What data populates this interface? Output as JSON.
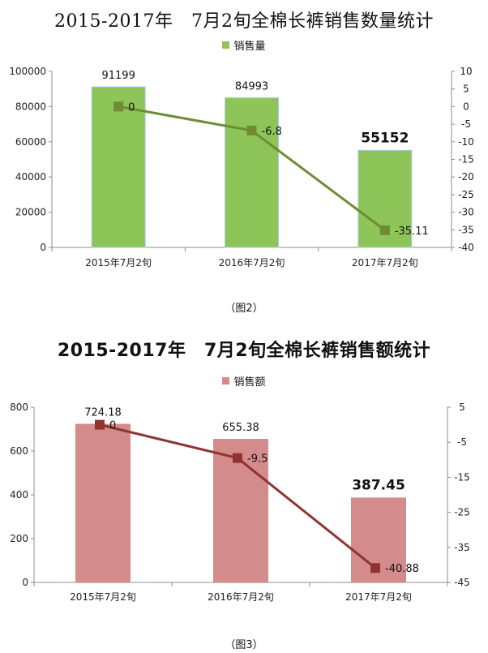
{
  "chart_data": [
    {
      "type": "bar",
      "title": "2015-2017年　7月2旬全棉长裤销售数量统计",
      "caption": "（图2）",
      "categories": [
        "2015年7月2旬",
        "2016年7月2旬",
        "2017年7月2旬"
      ],
      "series": [
        {
          "name": "销售量",
          "type": "bar",
          "axis": "left",
          "values": [
            91199,
            84993,
            55152
          ],
          "labels": [
            "91199",
            "84993",
            "55152"
          ],
          "color": "#8dc558"
        },
        {
          "type": "line",
          "axis": "right",
          "values": [
            0,
            -6.8,
            -35.11
          ],
          "labels": [
            "0",
            "-6.8",
            "-35.11"
          ],
          "color": "#6f8c35"
        }
      ],
      "ylim": [
        0,
        100000
      ],
      "yticks": [
        "0",
        "20000",
        "40000",
        "60000",
        "80000",
        "100000"
      ],
      "y2lim": [
        -40,
        10
      ],
      "y2ticks": [
        "10",
        "5",
        "0",
        "-5",
        "-10",
        "-15",
        "-20",
        "-25",
        "-30",
        "-35",
        "-40"
      ],
      "legend_position": "top",
      "grid": false,
      "emphasized_label_index": 2
    },
    {
      "type": "bar",
      "title": "2015-2017年　7月2旬全棉长裤销售额统计",
      "caption": "（图3）",
      "categories": [
        "2015年7月2旬",
        "2016年7月2旬",
        "2017年7月2旬"
      ],
      "series": [
        {
          "name": "销售额",
          "type": "bar",
          "axis": "left",
          "values": [
            724.18,
            655.38,
            387.45
          ],
          "labels": [
            "724.18",
            "655.38",
            "387.45"
          ],
          "color": "#d48b8b"
        },
        {
          "type": "line",
          "axis": "right",
          "values": [
            0,
            -9.5,
            -40.88
          ],
          "labels": [
            "0",
            "-9.5",
            "-40.88"
          ],
          "color": "#8e3532"
        }
      ],
      "ylim": [
        0,
        800
      ],
      "yticks": [
        "0",
        "200",
        "400",
        "600",
        "800"
      ],
      "y2lim": [
        -45,
        5
      ],
      "y2ticks": [
        "5",
        "-5",
        "-15",
        "-25",
        "-35",
        "-45"
      ],
      "legend_position": "top",
      "grid": false,
      "emphasized_label_index": 2
    }
  ]
}
